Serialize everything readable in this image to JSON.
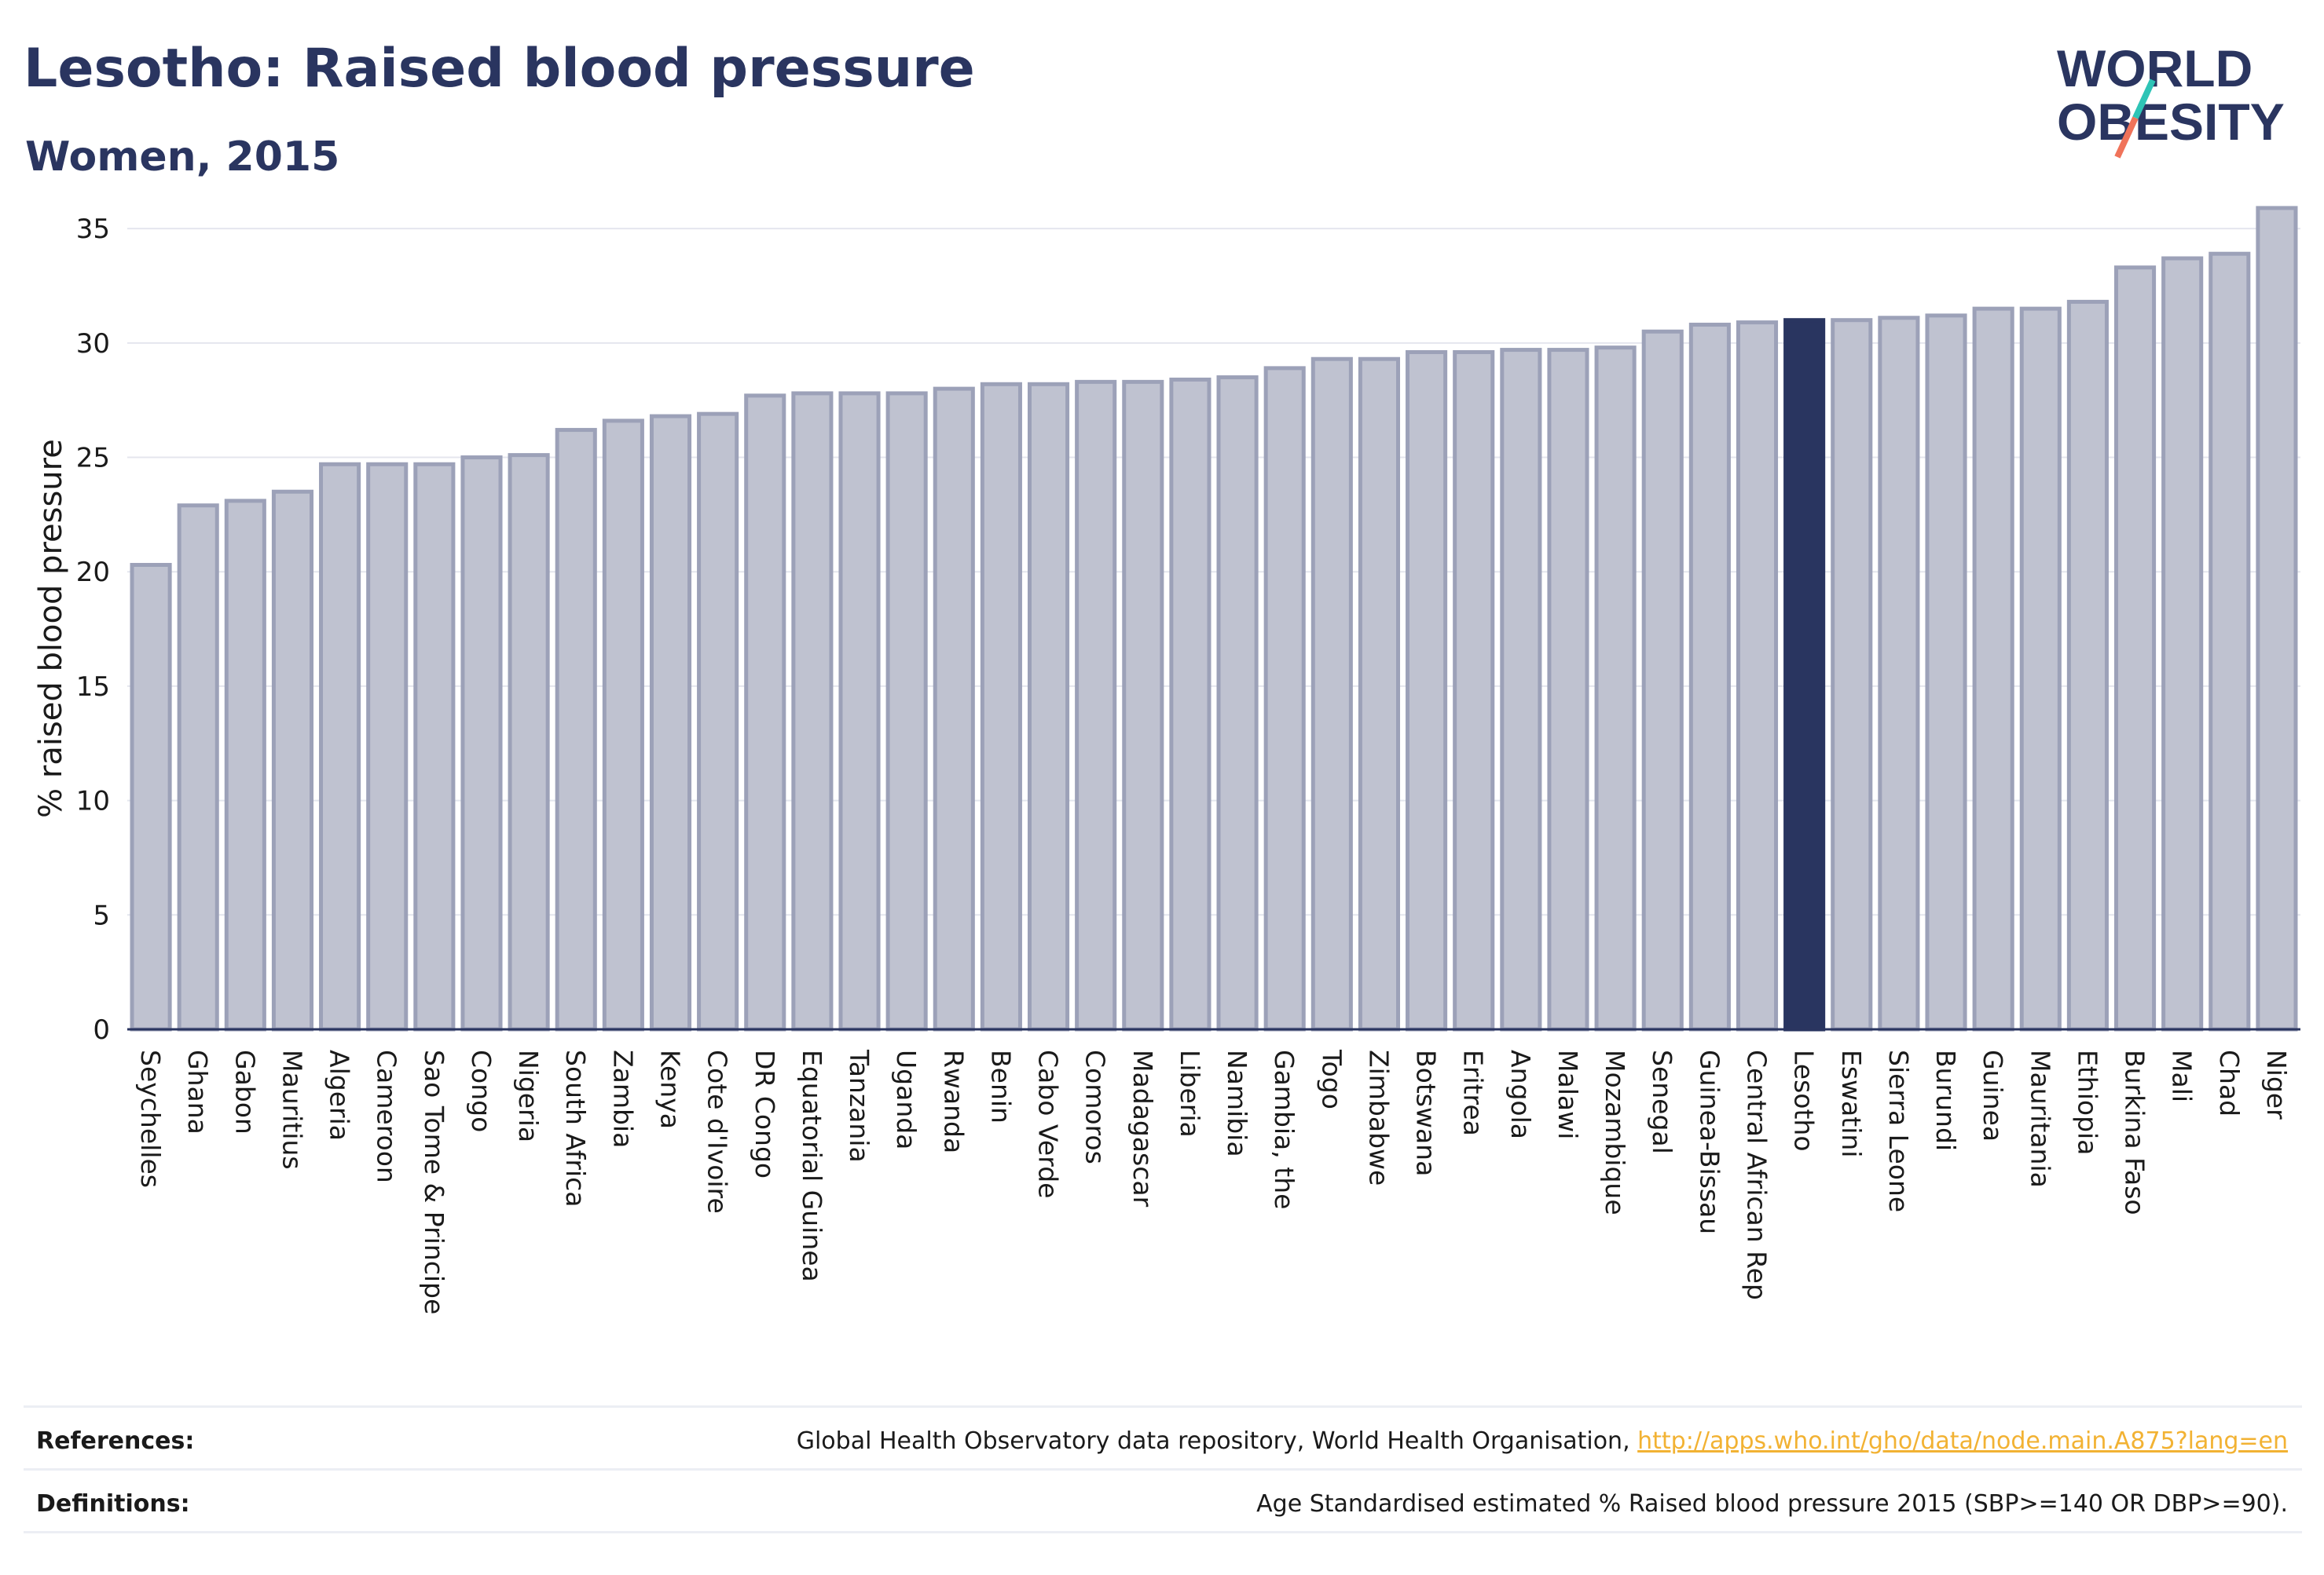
{
  "header": {
    "title": "Lesotho: Raised blood pressure",
    "subtitle": "Women, 2015"
  },
  "logo": {
    "line1": "WORLD",
    "line2": "OBESITY"
  },
  "footer": {
    "references_label": "References:",
    "references_text": "Global Health Observatory data repository, World Health Organisation, ",
    "references_link": "http://apps.who.int/gho/data/node.main.A875?lang=en",
    "definitions_label": "Definitions:",
    "definitions_text": "Age Standardised estimated % Raised blood pressure 2015 (SBP>=140 OR DBP>=90)."
  },
  "colors": {
    "bar": "#bfc2d0",
    "bar_stroke": "#9ca1b8",
    "highlight": "#293560",
    "brand": "#2a3560",
    "logo_teal": "#2ec4b6",
    "logo_coral": "#f0735a",
    "link": "#f2b233"
  },
  "chart_data": {
    "type": "bar",
    "ylabel": "% raised blood pressure",
    "xlabel": "",
    "ylim": [
      0,
      36
    ],
    "yticks": [
      0,
      5,
      10,
      15,
      20,
      25,
      30,
      35
    ],
    "grid": true,
    "highlight": "Lesotho",
    "categories": [
      "Seychelles",
      "Ghana",
      "Gabon",
      "Mauritius",
      "Algeria",
      "Cameroon",
      "Sao Tome & Principe",
      "Congo",
      "Nigeria",
      "South Africa",
      "Zambia",
      "Kenya",
      "Cote d'Ivoire",
      "DR Congo",
      "Equatorial Guinea",
      "Tanzania",
      "Uganda",
      "Rwanda",
      "Benin",
      "Cabo Verde",
      "Comoros",
      "Madagascar",
      "Liberia",
      "Namibia",
      "Gambia, the",
      "Togo",
      "Zimbabwe",
      "Botswana",
      "Eritrea",
      "Angola",
      "Malawi",
      "Mozambique",
      "Senegal",
      "Guinea-Bissau",
      "Central African Rep",
      "Lesotho",
      "Eswatini",
      "Sierra Leone",
      "Burundi",
      "Guinea",
      "Mauritania",
      "Ethiopia",
      "Burkina Faso",
      "Mali",
      "Chad",
      "Niger"
    ],
    "values": [
      20.3,
      22.9,
      23.1,
      23.5,
      24.7,
      24.7,
      24.7,
      25.0,
      25.1,
      26.2,
      26.6,
      26.8,
      26.9,
      27.7,
      27.8,
      27.8,
      27.8,
      28.0,
      28.2,
      28.2,
      28.3,
      28.3,
      28.4,
      28.5,
      28.9,
      29.3,
      29.3,
      29.6,
      29.6,
      29.7,
      29.7,
      29.8,
      30.5,
      30.8,
      30.9,
      31.0,
      31.0,
      31.1,
      31.2,
      31.5,
      31.5,
      31.8,
      33.3,
      33.7,
      33.9,
      35.9
    ]
  }
}
